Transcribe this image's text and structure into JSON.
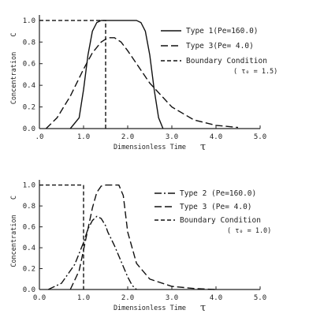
{
  "chart_data": [
    {
      "type": "line",
      "xlabel": "Dimensionless Time",
      "xsymbol": "τ",
      "ylabel": "Concentration",
      "ysymbol": "C",
      "xlim": [
        0,
        5
      ],
      "ylim": [
        0,
        1.05
      ],
      "xticks": [
        ".0",
        "1.0",
        "2.0",
        "3.0",
        "4.0",
        "5.0"
      ],
      "yticks": [
        "0.0",
        "0.2",
        "0.4",
        "0.6",
        "0.8",
        "1.0"
      ],
      "legend": {
        "placement": "right",
        "entries": [
          {
            "style": "solid",
            "text": "Type 1(Pe=160.0)"
          },
          {
            "style": "longdash",
            "text": "Type 3(Pe=   4.0)"
          },
          {
            "style": "dash",
            "text": "Boundary Condition"
          }
        ],
        "subtext": "( τ₀ =  1.5)"
      },
      "series": [
        {
          "name": "Type 1",
          "style": "solid",
          "x": [
            0.7,
            0.9,
            1.0,
            1.1,
            1.2,
            1.3,
            1.4,
            1.5,
            2.2,
            2.3,
            2.4,
            2.5,
            2.6,
            2.7,
            2.8
          ],
          "y": [
            0.0,
            0.1,
            0.36,
            0.68,
            0.9,
            0.98,
            1.0,
            1.0,
            1.0,
            0.98,
            0.9,
            0.68,
            0.36,
            0.1,
            0.0
          ]
        },
        {
          "name": "Type 3",
          "style": "longdash",
          "x": [
            0.15,
            0.4,
            0.7,
            1.0,
            1.2,
            1.4,
            1.55,
            1.7,
            1.85,
            2.0,
            2.2,
            2.5,
            3.0,
            3.5,
            4.0,
            4.5
          ],
          "y": [
            0.0,
            0.1,
            0.3,
            0.55,
            0.7,
            0.8,
            0.84,
            0.84,
            0.8,
            0.72,
            0.6,
            0.42,
            0.2,
            0.08,
            0.03,
            0.01
          ]
        },
        {
          "name": "Boundary Condition",
          "style": "dash",
          "x": [
            0.0,
            1.5,
            1.5
          ],
          "y": [
            1.0,
            1.0,
            0.0
          ]
        }
      ]
    },
    {
      "type": "line",
      "xlabel": "Dimensionless Time",
      "xsymbol": "τ",
      "ylabel": "Concentration",
      "ysymbol": "C",
      "xlim": [
        0,
        5
      ],
      "ylim": [
        0,
        1.05
      ],
      "xticks": [
        "0.0",
        "1.0",
        "2.0",
        "3.0",
        "4.0",
        "5.0"
      ],
      "yticks": [
        "0.0",
        "0.2",
        "0.4",
        "0.6",
        "0.8",
        "1.0"
      ],
      "legend": {
        "placement": "right",
        "entries": [
          {
            "style": "dashdot",
            "text": "Type 2 (Pe=160.0)"
          },
          {
            "style": "longdash",
            "text": "Type 3 (Pe=  4.0)"
          },
          {
            "style": "dash",
            "text": "Boundary Condition"
          }
        ],
        "subtext": "( τ₀ =  1.0)"
      },
      "series": [
        {
          "name": "Type 2",
          "style": "dashdot",
          "x": [
            0.2,
            0.5,
            0.8,
            1.0,
            1.1,
            1.2,
            1.3,
            1.4,
            1.5,
            1.55,
            1.7,
            1.8,
            1.9,
            2.0,
            2.1,
            2.2
          ],
          "y": [
            0.0,
            0.06,
            0.24,
            0.45,
            0.58,
            0.66,
            0.7,
            0.68,
            0.61,
            0.55,
            0.42,
            0.32,
            0.22,
            0.12,
            0.04,
            0.0
          ]
        },
        {
          "name": "Type 3",
          "style": "longdash",
          "x": [
            0.7,
            0.9,
            1.0,
            1.1,
            1.2,
            1.3,
            1.4,
            1.5,
            1.6,
            1.8,
            1.9,
            2.0,
            2.2,
            2.5,
            3.0,
            3.5,
            4.0
          ],
          "y": [
            0.0,
            0.18,
            0.38,
            0.58,
            0.78,
            0.93,
            0.99,
            1.0,
            1.0,
            1.0,
            0.9,
            0.55,
            0.25,
            0.1,
            0.03,
            0.01,
            0.0
          ]
        },
        {
          "name": "Boundary Condition",
          "style": "dash",
          "x": [
            0.0,
            1.0,
            1.0
          ],
          "y": [
            1.0,
            1.0,
            0.0
          ]
        }
      ]
    }
  ]
}
